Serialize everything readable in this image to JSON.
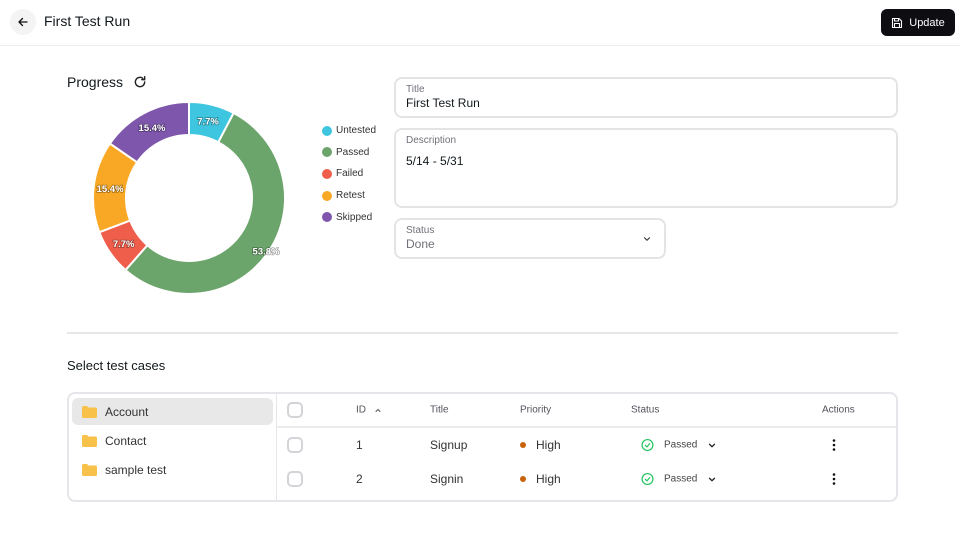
{
  "header": {
    "title": "First Test Run",
    "back_icon": "arrow-left-icon",
    "update_label": "Update",
    "update_icon": "save-icon"
  },
  "progress": {
    "title": "Progress",
    "refresh_icon": "refresh-icon"
  },
  "chart_data": {
    "type": "pie",
    "title": "Progress",
    "variant": "donut",
    "categories": [
      "Untested",
      "Passed",
      "Failed",
      "Retest",
      "Skipped"
    ],
    "values": [
      7.7,
      53.8,
      7.7,
      15.4,
      15.4
    ],
    "labels": [
      "7.7%",
      "53.8%",
      "7.7%",
      "15.4%",
      "15.4%"
    ],
    "colors": [
      "#3ec5e0",
      "#6ca56b",
      "#ef5e4b",
      "#f9a825",
      "#7e57ac"
    ],
    "legend_position": "right"
  },
  "legend": {
    "items": [
      {
        "label": "Untested",
        "color": "#3ec5e0"
      },
      {
        "label": "Passed",
        "color": "#6ca56b"
      },
      {
        "label": "Failed",
        "color": "#ef5e4b"
      },
      {
        "label": "Retest",
        "color": "#f9a825"
      },
      {
        "label": "Skipped",
        "color": "#7e57ac"
      }
    ]
  },
  "form": {
    "title_label": "Title",
    "title_value": "First Test Run",
    "description_label": "Description",
    "description_value": "5/14 - 5/31",
    "status_label": "Status",
    "status_value": "Done"
  },
  "cases": {
    "section_title": "Select test cases",
    "folders": [
      {
        "label": "Account",
        "active": true
      },
      {
        "label": "Contact",
        "active": false
      },
      {
        "label": "sample test",
        "active": false
      }
    ],
    "columns": {
      "id": "ID",
      "title": "Title",
      "priority": "Priority",
      "status": "Status",
      "actions": "Actions"
    },
    "rows": [
      {
        "id": "1",
        "title": "Signup",
        "priority": "High",
        "status": "Passed"
      },
      {
        "id": "2",
        "title": "Signin",
        "priority": "High",
        "status": "Passed"
      }
    ],
    "priority_color": "#c8620b",
    "status_color": "#22c55e"
  }
}
